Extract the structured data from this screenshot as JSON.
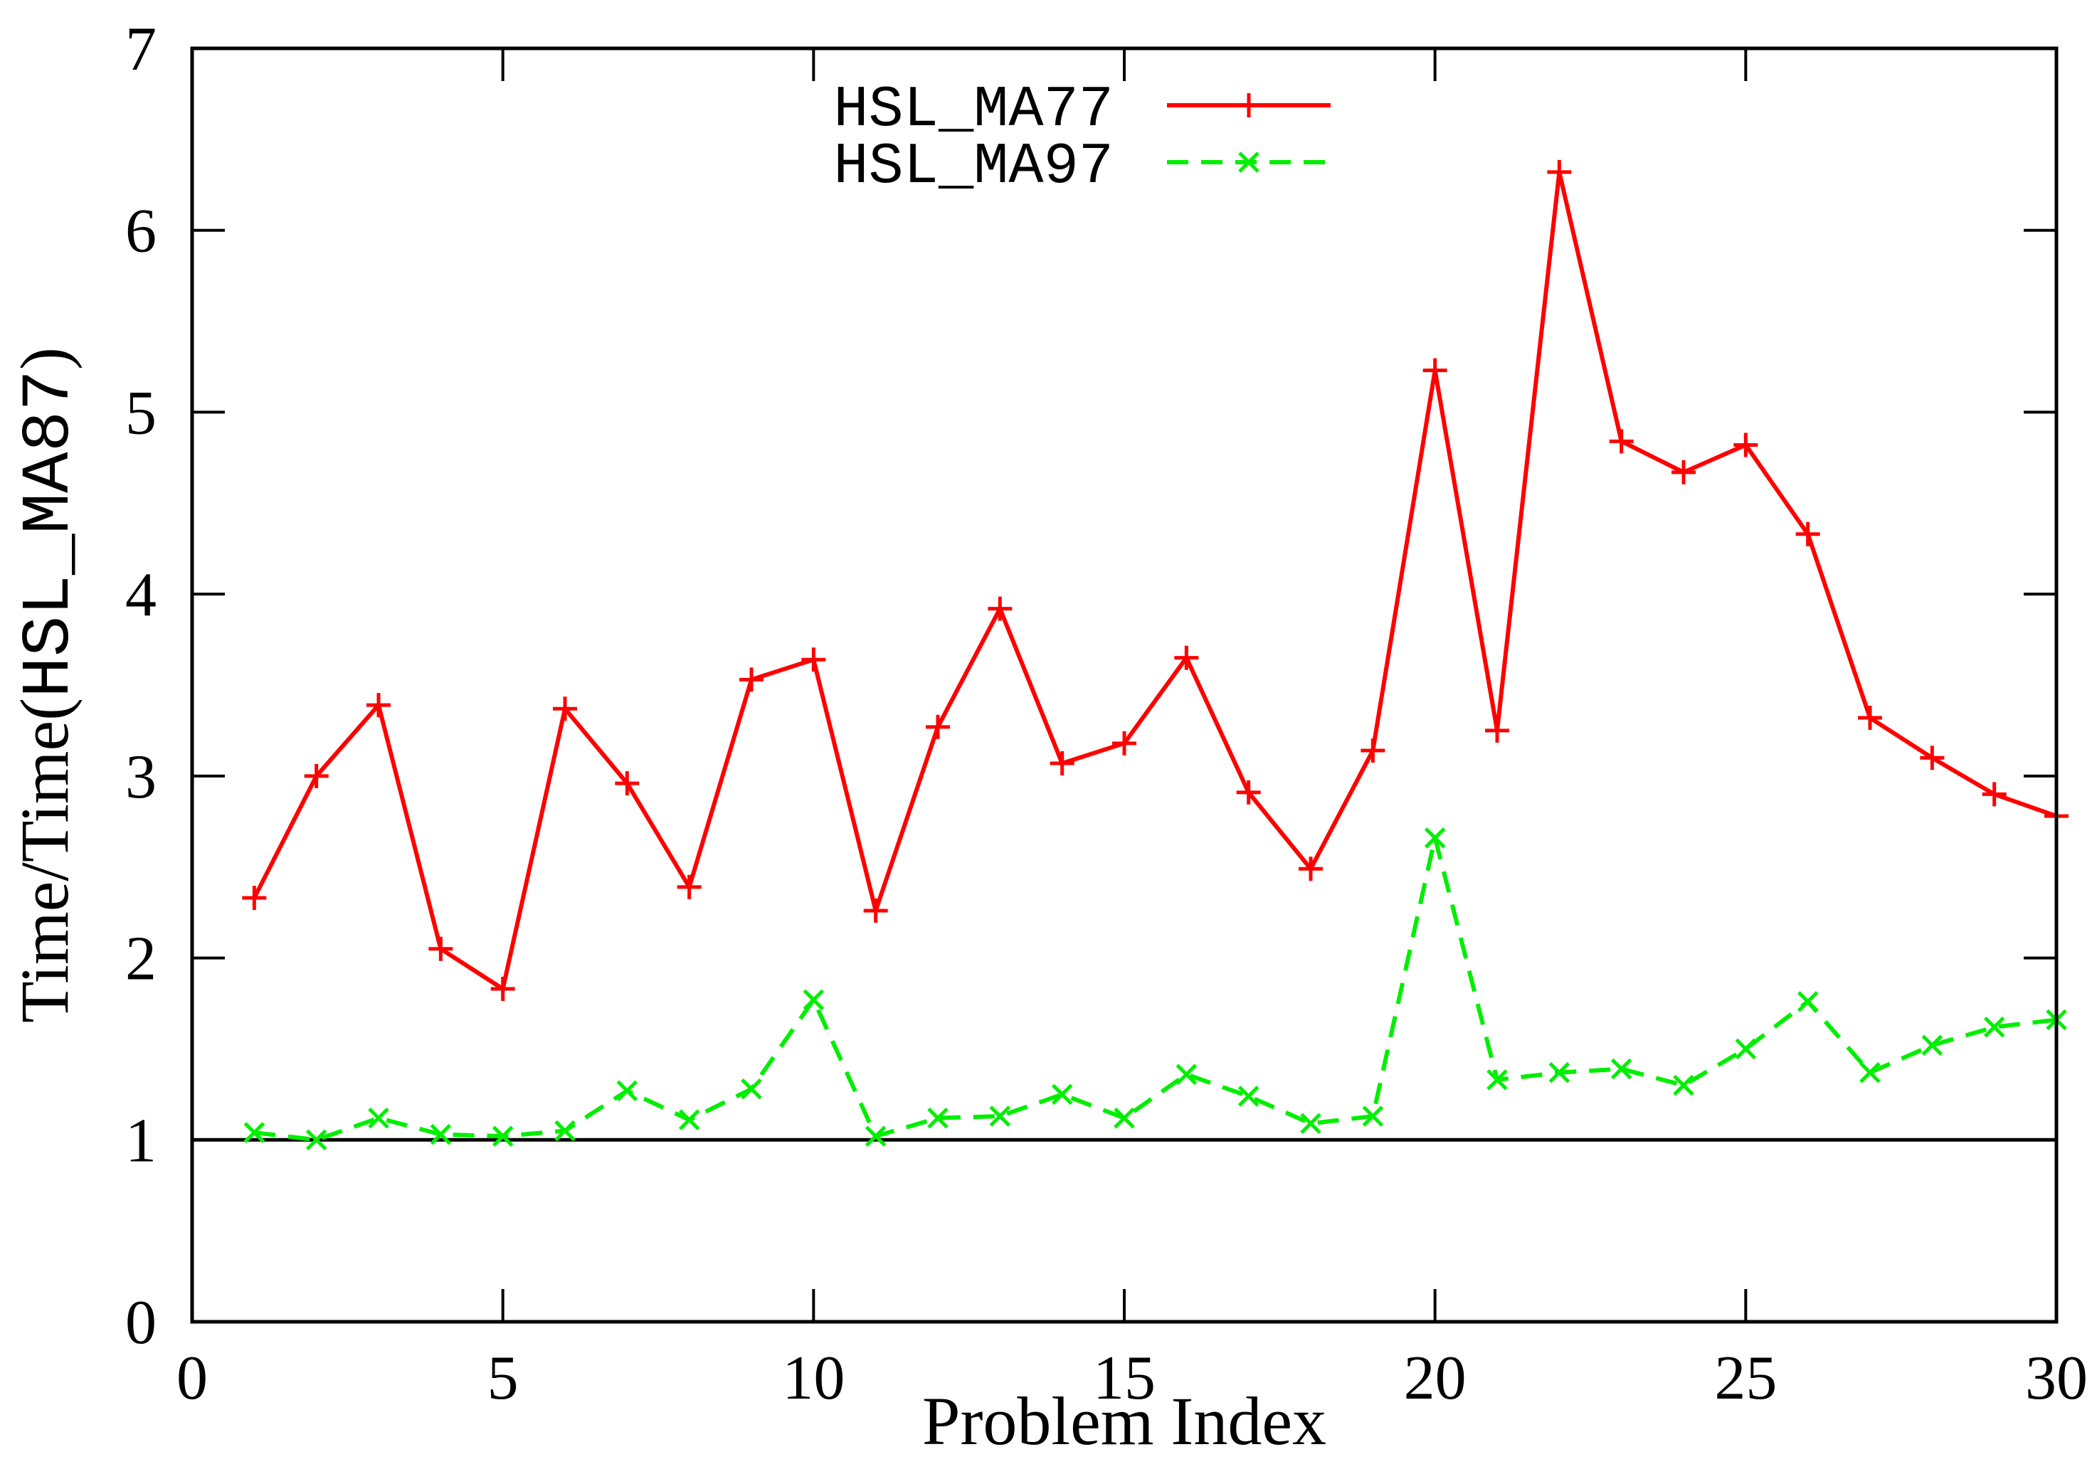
{
  "chart_data": {
    "type": "line",
    "xlabel": "Problem Index",
    "ylabel_prefix": "Time/Time(",
    "ylabel_code": "HSL_MA87",
    "ylabel_suffix": ")",
    "xlim": [
      0,
      30
    ],
    "ylim": [
      0,
      7
    ],
    "xticks": [
      0,
      5,
      10,
      15,
      20,
      25,
      30
    ],
    "yticks": [
      0,
      1,
      2,
      3,
      4,
      5,
      6,
      7
    ],
    "reference_line": 1,
    "legend_position": "top-center",
    "series": [
      {
        "name": "HSL_MA77",
        "color": "#ff0000",
        "marker": "plus",
        "dash": "solid",
        "x": [
          1,
          2,
          3,
          4,
          5,
          6,
          7,
          8,
          9,
          10,
          11,
          12,
          13,
          14,
          15,
          16,
          17,
          18,
          19,
          20,
          21,
          22,
          23,
          24,
          25,
          26,
          27,
          28,
          29,
          30
        ],
        "values": [
          2.33,
          3.0,
          3.39,
          2.05,
          1.83,
          3.37,
          2.96,
          2.39,
          3.53,
          3.64,
          2.26,
          3.27,
          3.92,
          3.07,
          3.18,
          3.65,
          2.91,
          2.49,
          3.14,
          5.23,
          3.25,
          6.32,
          4.84,
          4.67,
          4.82,
          4.33,
          3.32,
          3.1,
          2.9,
          2.78
        ]
      },
      {
        "name": "HSL_MA97",
        "color": "#00ee00",
        "marker": "cross",
        "dash": "dashed",
        "x": [
          1,
          2,
          3,
          4,
          5,
          6,
          7,
          8,
          9,
          10,
          11,
          12,
          13,
          14,
          15,
          16,
          17,
          18,
          19,
          20,
          21,
          22,
          23,
          24,
          25,
          26,
          27,
          28,
          29,
          30
        ],
        "values": [
          1.04,
          1.0,
          1.12,
          1.03,
          1.02,
          1.05,
          1.27,
          1.11,
          1.28,
          1.77,
          1.02,
          1.12,
          1.13,
          1.25,
          1.12,
          1.36,
          1.24,
          1.09,
          1.13,
          2.66,
          1.33,
          1.37,
          1.39,
          1.3,
          1.5,
          1.76,
          1.37,
          1.52,
          1.62,
          1.66
        ]
      }
    ]
  }
}
